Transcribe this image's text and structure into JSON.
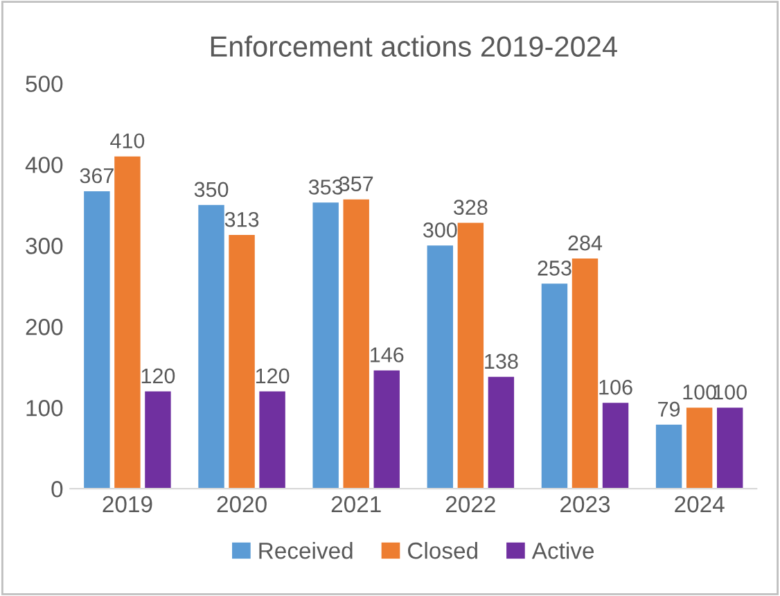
{
  "chart_data": {
    "type": "bar",
    "title": "Enforcement actions 2019-2024",
    "categories": [
      "2019",
      "2020",
      "2021",
      "2022",
      "2023",
      "2024"
    ],
    "series": [
      {
        "name": "Received",
        "color": "#5b9bd5",
        "values": [
          367,
          350,
          353,
          300,
          253,
          79
        ]
      },
      {
        "name": "Closed",
        "color": "#ed7d31",
        "values": [
          410,
          313,
          357,
          328,
          284,
          100
        ]
      },
      {
        "name": "Active",
        "color": "#7030a0",
        "values": [
          120,
          120,
          146,
          138,
          106,
          100
        ]
      }
    ],
    "ylim": [
      0,
      500
    ],
    "yticks": [
      0,
      100,
      200,
      300,
      400,
      500
    ],
    "grid": false,
    "legend": "bottom",
    "data_labels": true
  }
}
